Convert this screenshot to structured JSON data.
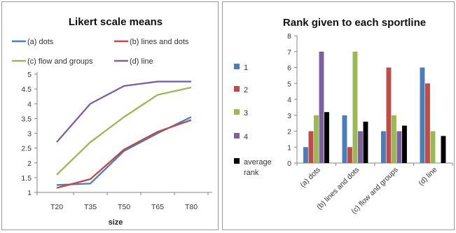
{
  "chart_data": [
    {
      "type": "line",
      "title": "Likert scale means",
      "xlabel": "size",
      "ylabel": "",
      "categories": [
        "T20",
        "T35",
        "T50",
        "T65",
        "T80"
      ],
      "ylim": [
        1,
        5
      ],
      "yticks": [
        1,
        1.5,
        2,
        2.5,
        3,
        3.5,
        4,
        4.5,
        5
      ],
      "ytick_labels": [
        "1",
        "1.5",
        "2",
        "2.5",
        "3",
        "3.5",
        "4",
        "4.5",
        "5"
      ],
      "grid": false,
      "legend_position": "top",
      "series": [
        {
          "name": "(a) dots",
          "color": "#4a7ebb",
          "values": [
            1.25,
            1.3,
            2.4,
            3.0,
            3.55
          ]
        },
        {
          "name": "(b) lines and dots",
          "color": "#be4b48",
          "values": [
            1.15,
            1.45,
            2.45,
            3.05,
            3.45
          ]
        },
        {
          "name": "(c) flow and groups",
          "color": "#98b954",
          "values": [
            1.6,
            2.7,
            3.55,
            4.3,
            4.55
          ]
        },
        {
          "name": "(d) line",
          "color": "#7d60a0",
          "values": [
            2.7,
            4.0,
            4.6,
            4.75,
            4.75
          ]
        }
      ]
    },
    {
      "type": "bar",
      "title": "Rank given to each sportline",
      "xlabel": "",
      "ylabel": "",
      "categories": [
        "(a) dots",
        "(b) lines and dots",
        "(c) flow and groups",
        "(d) line"
      ],
      "ylim": [
        0,
        8
      ],
      "yticks": [
        0,
        1,
        2,
        3,
        4,
        5,
        6,
        7,
        8
      ],
      "ytick_labels": [
        "0",
        "1",
        "2",
        "3",
        "4",
        "5",
        "6",
        "7",
        "8"
      ],
      "grid": false,
      "legend_position": "left",
      "series": [
        {
          "name": "1",
          "color": "#4a7ebb",
          "values": [
            1,
            3,
            2,
            6
          ]
        },
        {
          "name": "2",
          "color": "#be4b48",
          "values": [
            2,
            1,
            6,
            5
          ]
        },
        {
          "name": "3",
          "color": "#98b954",
          "values": [
            3,
            7,
            3,
            2
          ]
        },
        {
          "name": "4",
          "color": "#7d60a0",
          "values": [
            7,
            2,
            2,
            0
          ]
        },
        {
          "name": "average rank",
          "color": "#000000",
          "values": [
            3.2,
            2.6,
            2.35,
            1.7
          ]
        }
      ]
    }
  ]
}
